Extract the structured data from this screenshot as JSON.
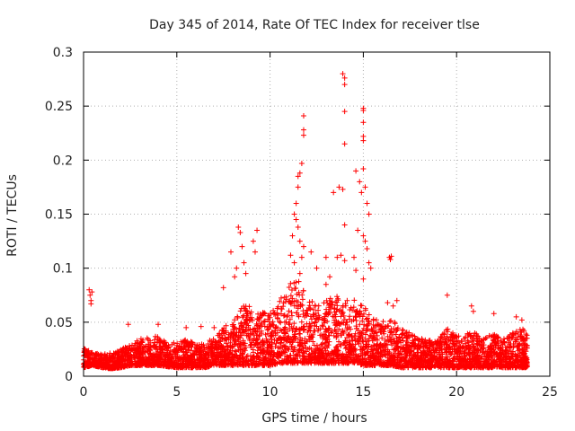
{
  "chart_data": {
    "type": "scatter",
    "title": "Day 345 of 2014, Rate Of TEC Index for receiver tlse",
    "xlabel": "GPS time / hours",
    "ylabel": "ROTI / TECUs",
    "xlim": [
      0,
      25
    ],
    "ylim": [
      0,
      0.3
    ],
    "xticks": [
      "0",
      "5",
      "10",
      "15",
      "20",
      "25"
    ],
    "xtick_values": [
      0,
      5,
      10,
      15,
      20,
      25
    ],
    "yticks": [
      "0",
      "0.05",
      "0.1",
      "0.15",
      "0.2",
      "0.25",
      "0.3"
    ],
    "ytick_values": [
      0,
      0.05,
      0.1,
      0.15,
      0.2,
      0.25,
      0.3
    ],
    "grid": true,
    "marker": "+",
    "color": "#ff0000",
    "series": [
      {
        "name": "ROTI",
        "points": [
          [
            0.3,
            0.08
          ],
          [
            0.35,
            0.075
          ],
          [
            0.4,
            0.07
          ],
          [
            0.45,
            0.078
          ],
          [
            0.4,
            0.067
          ],
          [
            8.3,
            0.138
          ],
          [
            8.4,
            0.133
          ],
          [
            8.5,
            0.12
          ],
          [
            8.6,
            0.105
          ],
          [
            8.7,
            0.095
          ],
          [
            7.9,
            0.115
          ],
          [
            8.1,
            0.092
          ],
          [
            7.5,
            0.082
          ],
          [
            9.1,
            0.125
          ],
          [
            9.2,
            0.115
          ],
          [
            9.3,
            0.135
          ],
          [
            8.2,
            0.1
          ],
          [
            11.1,
            0.112
          ],
          [
            11.2,
            0.13
          ],
          [
            11.3,
            0.15
          ],
          [
            11.4,
            0.16
          ],
          [
            11.5,
            0.175
          ],
          [
            11.6,
            0.188
          ],
          [
            11.7,
            0.197
          ],
          [
            11.5,
            0.185
          ],
          [
            11.4,
            0.145
          ],
          [
            11.5,
            0.138
          ],
          [
            11.6,
            0.125
          ],
          [
            11.7,
            0.11
          ],
          [
            11.8,
            0.12
          ],
          [
            11.3,
            0.105
          ],
          [
            11.6,
            0.095
          ],
          [
            11.8,
            0.241
          ],
          [
            11.8,
            0.228
          ],
          [
            11.8,
            0.223
          ],
          [
            12.2,
            0.115
          ],
          [
            12.5,
            0.1
          ],
          [
            13.0,
            0.11
          ],
          [
            13.2,
            0.092
          ],
          [
            13.0,
            0.085
          ],
          [
            13.4,
            0.17
          ],
          [
            13.7,
            0.175
          ],
          [
            13.9,
            0.173
          ],
          [
            13.6,
            0.11
          ],
          [
            13.8,
            0.112
          ],
          [
            14.0,
            0.107
          ],
          [
            13.9,
            0.28
          ],
          [
            14.0,
            0.276
          ],
          [
            14.0,
            0.27
          ],
          [
            14.0,
            0.245
          ],
          [
            14.0,
            0.215
          ],
          [
            14.0,
            0.14
          ],
          [
            14.6,
            0.19
          ],
          [
            14.8,
            0.18
          ],
          [
            14.9,
            0.17
          ],
          [
            15.0,
            0.192
          ],
          [
            15.1,
            0.175
          ],
          [
            15.2,
            0.16
          ],
          [
            15.3,
            0.15
          ],
          [
            14.7,
            0.135
          ],
          [
            15.0,
            0.13
          ],
          [
            15.1,
            0.125
          ],
          [
            15.2,
            0.118
          ],
          [
            14.5,
            0.11
          ],
          [
            14.6,
            0.098
          ],
          [
            15.3,
            0.105
          ],
          [
            15.4,
            0.1
          ],
          [
            15.0,
            0.09
          ],
          [
            15.0,
            0.248
          ],
          [
            15.0,
            0.246
          ],
          [
            15.0,
            0.235
          ],
          [
            15.0,
            0.222
          ],
          [
            15.0,
            0.218
          ],
          [
            16.4,
            0.11
          ],
          [
            16.45,
            0.108
          ],
          [
            16.5,
            0.111
          ],
          [
            16.3,
            0.068
          ],
          [
            16.6,
            0.065
          ],
          [
            16.8,
            0.07
          ],
          [
            19.5,
            0.075
          ],
          [
            20.8,
            0.065
          ],
          [
            20.9,
            0.06
          ],
          [
            22.0,
            0.058
          ],
          [
            23.2,
            0.055
          ],
          [
            23.5,
            0.052
          ],
          [
            2.4,
            0.048
          ],
          [
            4.0,
            0.048
          ],
          [
            5.5,
            0.045
          ],
          [
            6.3,
            0.046
          ],
          [
            7.0,
            0.045
          ]
        ],
        "dense_band": [
          [
            0,
            0.008,
            0.026
          ],
          [
            0.5,
            0.01,
            0.022
          ],
          [
            1,
            0.008,
            0.02
          ],
          [
            1.5,
            0.007,
            0.022
          ],
          [
            2,
            0.008,
            0.025
          ],
          [
            2.5,
            0.01,
            0.03
          ],
          [
            3,
            0.01,
            0.035
          ],
          [
            3.5,
            0.01,
            0.036
          ],
          [
            4,
            0.01,
            0.038
          ],
          [
            4.5,
            0.009,
            0.03
          ],
          [
            5,
            0.008,
            0.032
          ],
          [
            5.5,
            0.008,
            0.034
          ],
          [
            6,
            0.008,
            0.03
          ],
          [
            6.5,
            0.008,
            0.03
          ],
          [
            7,
            0.01,
            0.036
          ],
          [
            7.5,
            0.01,
            0.045
          ],
          [
            8,
            0.01,
            0.055
          ],
          [
            8.5,
            0.01,
            0.065
          ],
          [
            9,
            0.01,
            0.065
          ],
          [
            9.5,
            0.01,
            0.06
          ],
          [
            10,
            0.01,
            0.058
          ],
          [
            10.5,
            0.012,
            0.07
          ],
          [
            11,
            0.012,
            0.085
          ],
          [
            11.5,
            0.012,
            0.09
          ],
          [
            12,
            0.012,
            0.075
          ],
          [
            12.5,
            0.012,
            0.065
          ],
          [
            13,
            0.012,
            0.07
          ],
          [
            13.5,
            0.012,
            0.075
          ],
          [
            14,
            0.012,
            0.07
          ],
          [
            14.5,
            0.012,
            0.072
          ],
          [
            15,
            0.01,
            0.065
          ],
          [
            15.5,
            0.01,
            0.055
          ],
          [
            16,
            0.01,
            0.05
          ],
          [
            16.5,
            0.01,
            0.055
          ],
          [
            17,
            0.008,
            0.045
          ],
          [
            17.5,
            0.008,
            0.04
          ],
          [
            18,
            0.008,
            0.035
          ],
          [
            18.5,
            0.008,
            0.035
          ],
          [
            19,
            0.008,
            0.035
          ],
          [
            19.5,
            0.008,
            0.045
          ],
          [
            20,
            0.008,
            0.038
          ],
          [
            20.5,
            0.008,
            0.04
          ],
          [
            21,
            0.008,
            0.04
          ],
          [
            21.5,
            0.008,
            0.035
          ],
          [
            22,
            0.008,
            0.04
          ],
          [
            22.5,
            0.008,
            0.035
          ],
          [
            23,
            0.008,
            0.04
          ],
          [
            23.5,
            0.008,
            0.045
          ],
          [
            23.8,
            0.008,
            0.04
          ]
        ]
      }
    ]
  }
}
